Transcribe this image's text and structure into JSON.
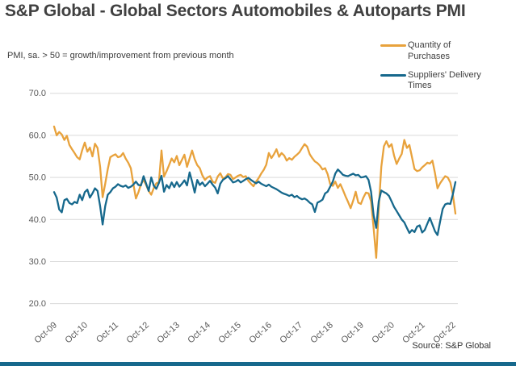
{
  "header": {
    "title": "S&P Global - Global Sectors Automobiles & Autoparts PMI",
    "subtitle": "PMI, sa. > 50 = growth/improvement from previous month",
    "source": "Source: S&P Global"
  },
  "legend": [
    {
      "label": "Quantity of Purchases",
      "color": "#E8A23C"
    },
    {
      "label": "Suppliers' Delivery Times",
      "color": "#16688C"
    }
  ],
  "colors": {
    "title_text": "#404040",
    "axis_text": "#595959",
    "gridline": "#D9D9D9",
    "orange_series": "#E8A23C",
    "teal_series": "#16688C",
    "bottom_bar": "#16688C"
  },
  "chart_data": {
    "type": "line",
    "title": "S&P Global - Global Sectors Automobiles & Autoparts PMI",
    "subtitle": "PMI, sa. > 50 = growth/improvement from previous month",
    "x_unit": "month",
    "x_start": "Oct-09",
    "x_end": "Nov-22",
    "x_tick_labels": [
      "Oct-09",
      "Oct-10",
      "Oct-11",
      "Oct-12",
      "Oct-13",
      "Oct-14",
      "Oct-15",
      "Oct-16",
      "Oct-17",
      "Oct-18",
      "Oct-19",
      "Oct-20",
      "Oct-21",
      "Oct-22"
    ],
    "ylim": [
      20,
      70
    ],
    "yticks": [
      70,
      60,
      50,
      40,
      30,
      20
    ],
    "ytick_labels": [
      "70.0",
      "60.0",
      "50.0",
      "40.0",
      "30.0",
      "20.0"
    ],
    "grid": "horizontal",
    "legend_position": "top-right",
    "series": [
      {
        "name": "Quantity of Purchases",
        "color": "#E8A23C",
        "values": [
          62.1,
          60.0,
          60.8,
          60.2,
          58.9,
          59.9,
          57.7,
          56.7,
          55.8,
          54.8,
          54.3,
          56.5,
          58.3,
          56.1,
          57.1,
          55.0,
          58.0,
          57.0,
          52.5,
          45.3,
          48.5,
          52.0,
          54.8,
          55.2,
          55.5,
          54.8,
          55.0,
          55.8,
          54.5,
          53.5,
          52.2,
          48.5,
          45.0,
          46.5,
          48.4,
          49.4,
          48.2,
          46.8,
          45.9,
          47.5,
          48.6,
          48.9,
          56.4,
          50.2,
          51.5,
          53.0,
          54.5,
          53.6,
          55.1,
          52.9,
          54.2,
          55.4,
          52.5,
          54.5,
          56.4,
          54.3,
          52.9,
          52.2,
          50.5,
          49.4,
          50.0,
          50.3,
          49.0,
          48.7,
          50.2,
          51.0,
          49.8,
          50.0,
          50.8,
          50.6,
          49.6,
          50.0,
          50.4,
          50.6,
          50.1,
          50.3,
          49.2,
          48.5,
          47.9,
          49.0,
          49.8,
          50.9,
          51.8,
          53.0,
          55.8,
          54.6,
          55.5,
          56.7,
          54.9,
          55.8,
          55.2,
          54.0,
          54.6,
          54.2,
          54.9,
          55.4,
          56.0,
          57.0,
          57.9,
          57.3,
          55.5,
          54.6,
          53.8,
          53.4,
          52.8,
          51.9,
          52.2,
          50.8,
          48.4,
          48.0,
          49.0,
          47.5,
          48.4,
          47.0,
          45.5,
          44.2,
          42.7,
          44.5,
          46.6,
          44.0,
          43.7,
          45.2,
          46.4,
          46.2,
          44.3,
          37.9,
          30.9,
          42.5,
          52.5,
          57.4,
          58.6,
          57.2,
          57.9,
          55.2,
          53.2,
          54.5,
          55.6,
          58.9,
          57.0,
          57.7,
          54.8,
          52.0,
          51.5,
          51.7,
          52.4,
          52.9,
          53.5,
          53.3,
          54.0,
          51.0,
          47.4,
          48.6,
          49.5,
          50.3,
          50.0,
          48.8,
          46.0,
          41.4
        ]
      },
      {
        "name": "Suppliers' Delivery Times",
        "color": "#16688C",
        "values": [
          46.5,
          45.2,
          42.4,
          41.7,
          44.6,
          44.9,
          43.9,
          43.6,
          44.2,
          43.9,
          45.9,
          44.6,
          46.5,
          47.1,
          45.2,
          46.2,
          47.4,
          46.8,
          43.2,
          38.8,
          43.2,
          45.9,
          46.5,
          47.4,
          47.8,
          48.4,
          48.0,
          47.8,
          48.1,
          47.5,
          47.8,
          48.3,
          49.0,
          48.2,
          48.1,
          50.3,
          48.5,
          46.8,
          50.0,
          48.0,
          47.3,
          48.7,
          50.4,
          46.6,
          48.2,
          47.4,
          48.8,
          47.7,
          48.9,
          47.8,
          48.5,
          49.3,
          48.1,
          51.2,
          49.0,
          46.4,
          49.4,
          48.2,
          48.8,
          47.9,
          48.5,
          49.2,
          48.3,
          47.6,
          46.2,
          48.5,
          49.4,
          49.8,
          50.3,
          49.6,
          48.8,
          49.0,
          49.4,
          48.8,
          49.2,
          49.6,
          49.9,
          49.4,
          49.0,
          48.6,
          49.0,
          48.5,
          48.2,
          47.9,
          48.3,
          47.8,
          47.5,
          47.2,
          46.8,
          46.4,
          46.1,
          45.9,
          45.6,
          45.9,
          45.3,
          45.6,
          45.1,
          44.8,
          45.0,
          44.6,
          44.0,
          43.6,
          41.8,
          44.0,
          44.3,
          44.7,
          46.2,
          46.6,
          47.8,
          49.0,
          50.9,
          51.9,
          51.3,
          50.6,
          50.4,
          50.3,
          50.6,
          50.9,
          50.5,
          50.6,
          50.0,
          50.1,
          50.3,
          49.4,
          46.6,
          41.0,
          38.0,
          44.3,
          46.9,
          46.5,
          46.2,
          45.6,
          44.3,
          43.0,
          42.0,
          41.0,
          40.0,
          39.3,
          38.0,
          36.8,
          37.5,
          37.0,
          38.3,
          38.6,
          36.9,
          37.5,
          39.0,
          40.4,
          38.8,
          37.2,
          36.3,
          39.5,
          42.5,
          43.6,
          43.8,
          43.7,
          46.0,
          48.9
        ]
      }
    ]
  }
}
